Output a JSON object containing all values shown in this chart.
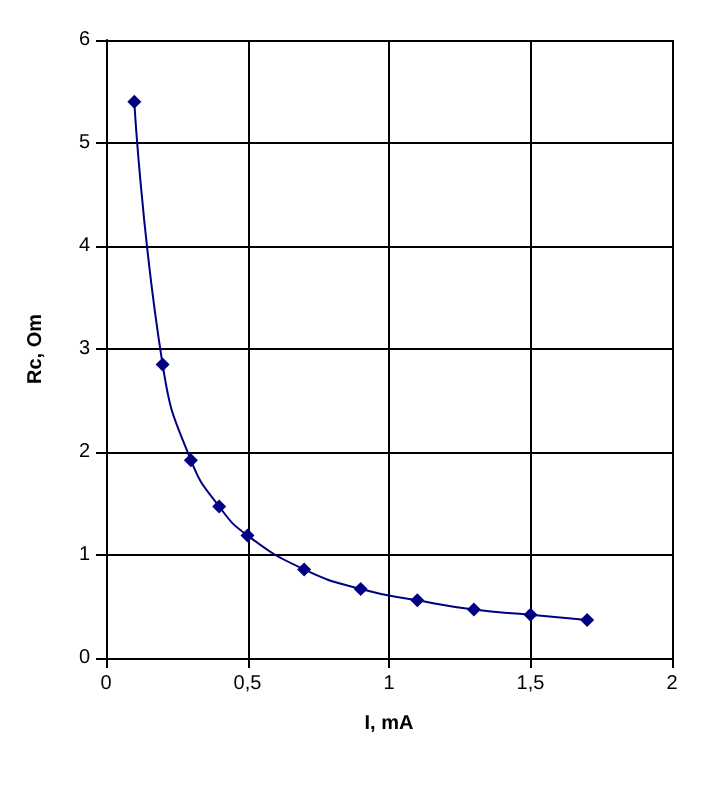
{
  "chart_data": {
    "type": "line",
    "xlabel": "I, mA",
    "ylabel": "Rc, Om",
    "x": [
      0.1,
      0.2,
      0.3,
      0.4,
      0.5,
      0.7,
      0.9,
      1.1,
      1.3,
      1.5,
      1.7
    ],
    "series": [
      {
        "color": "#000080",
        "values": [
          5.4,
          2.85,
          1.92,
          1.47,
          1.19,
          0.86,
          0.67,
          0.56,
          0.47,
          0.42,
          0.37
        ]
      }
    ],
    "xlim": [
      0,
      2
    ],
    "xticks": [
      0,
      {
        "value": 0.5,
        "label": "0,5"
      },
      1,
      {
        "value": 1.5,
        "label": "1,5"
      },
      2
    ],
    "ylim": [
      0,
      6
    ],
    "yticks": [
      0,
      1,
      2,
      3,
      4,
      5,
      6
    ],
    "grid": true,
    "marker": "diamond",
    "line_style": "solid"
  }
}
